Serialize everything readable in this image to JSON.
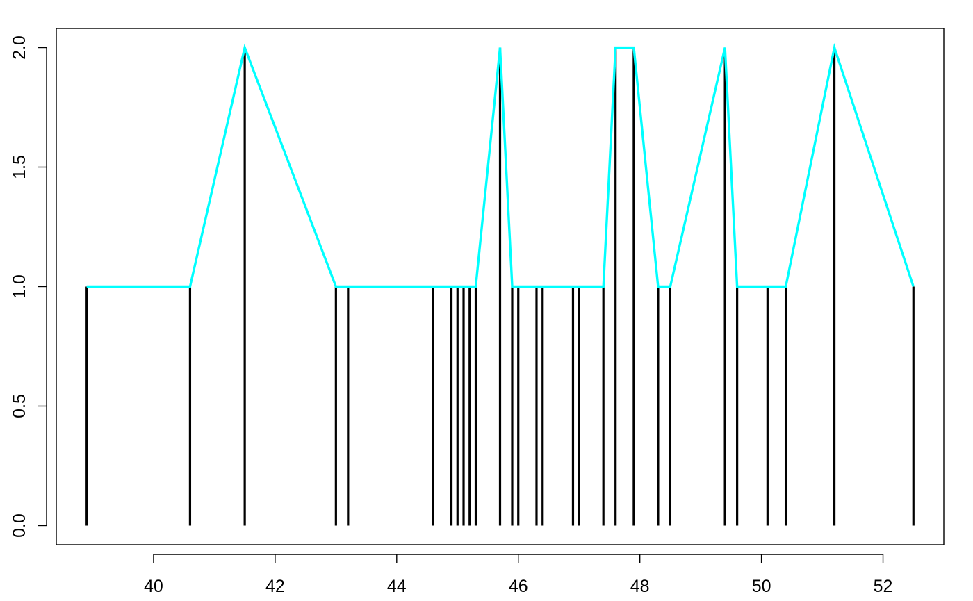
{
  "chart_data": {
    "type": "line",
    "title": "",
    "xlabel": "",
    "ylabel": "",
    "xlim": [
      38.4,
      53.0
    ],
    "ylim": [
      -0.08,
      2.08
    ],
    "x_ticks": [
      40,
      42,
      44,
      46,
      48,
      50,
      52
    ],
    "x_tick_labels": [
      "40",
      "42",
      "44",
      "46",
      "48",
      "50",
      "52"
    ],
    "y_ticks": [
      0.0,
      0.5,
      1.0,
      1.5,
      2.0
    ],
    "y_tick_labels": [
      "0.0",
      "0.5",
      "1.0",
      "1.5",
      "2.0"
    ],
    "grid": false,
    "series": [
      {
        "kind": "spikes",
        "color": "#000000",
        "x": [
          38.9,
          40.6,
          41.5,
          43.0,
          43.2,
          44.6,
          44.9,
          45.0,
          45.1,
          45.2,
          45.3,
          45.7,
          45.9,
          46.0,
          46.3,
          46.4,
          46.9,
          47.0,
          47.4,
          47.6,
          47.9,
          48.3,
          48.5,
          49.4,
          49.6,
          50.1,
          50.4,
          51.2,
          52.5
        ],
        "y": [
          1,
          1,
          2,
          1,
          1,
          1,
          1,
          1,
          1,
          1,
          1,
          2,
          1,
          1,
          1,
          1,
          1,
          1,
          1,
          2,
          2,
          1,
          1,
          2,
          1,
          1,
          1,
          2,
          1
        ]
      },
      {
        "kind": "polyline",
        "color": "#00FFFF",
        "x": [
          38.9,
          40.6,
          41.5,
          43.0,
          43.2,
          44.6,
          44.9,
          45.0,
          45.1,
          45.2,
          45.3,
          45.7,
          45.9,
          46.0,
          46.3,
          46.4,
          46.9,
          47.0,
          47.4,
          47.6,
          47.9,
          48.3,
          48.5,
          49.4,
          49.6,
          50.1,
          50.4,
          51.2,
          52.5
        ],
        "y": [
          1,
          1,
          2,
          1,
          1,
          1,
          1,
          1,
          1,
          1,
          1,
          2,
          1,
          1,
          1,
          1,
          1,
          1,
          1,
          2,
          2,
          1,
          1,
          2,
          1,
          1,
          1,
          2,
          1
        ]
      }
    ]
  }
}
